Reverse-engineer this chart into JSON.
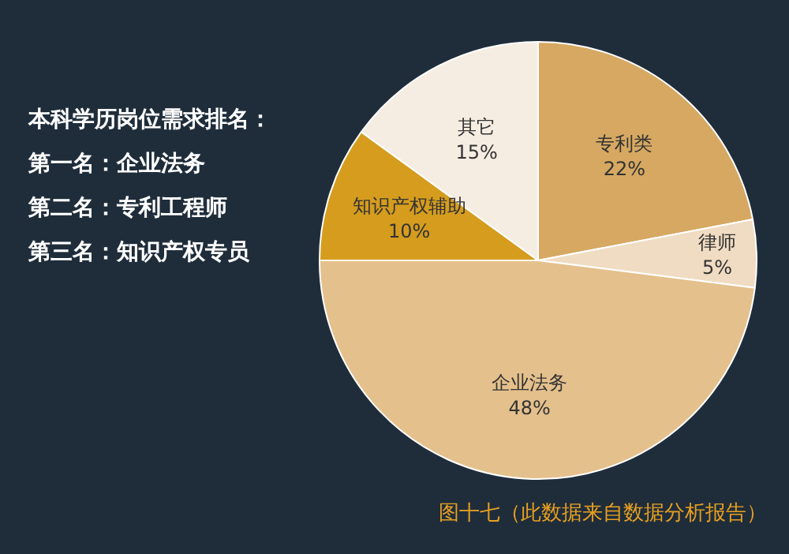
{
  "chart_data": {
    "type": "pie",
    "title": "本科学历岗位需求排名：",
    "categories": [
      "专利类",
      "律师",
      "企业法务",
      "知识产权辅助",
      "其它"
    ],
    "values": [
      22,
      5,
      48,
      10,
      15
    ],
    "colors": [
      "#d6a862",
      "#f0dcc2",
      "#e4c08c",
      "#d59c1e",
      "#f6ede2"
    ],
    "value_labels": [
      "22%",
      "5%",
      "48%",
      "10%",
      "15%"
    ],
    "annotations": [
      "第一名：企业法务",
      "第二名：专利工程师",
      "第三名：知识产权专员",
      "图十七（此数据来自数据分析报告）"
    ],
    "legend": false
  }
}
